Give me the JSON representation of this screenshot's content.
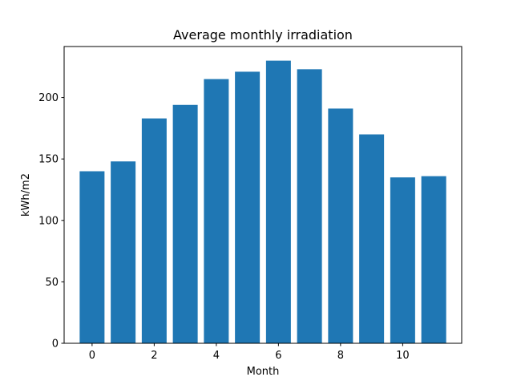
{
  "chart_data": {
    "type": "bar",
    "title": "Average monthly irradiation",
    "xlabel": "Month",
    "ylabel": "kWh/m2",
    "x": [
      0,
      1,
      2,
      3,
      4,
      5,
      6,
      7,
      8,
      9,
      10,
      11
    ],
    "values": [
      140,
      148,
      183,
      194,
      215,
      221,
      230,
      223,
      191,
      170,
      135,
      136
    ],
    "xlim": [
      -0.9,
      11.9
    ],
    "ylim": [
      0,
      241.5
    ],
    "xticks": [
      0,
      2,
      4,
      6,
      8,
      10
    ],
    "yticks": [
      0,
      50,
      100,
      150,
      200
    ],
    "bar_width": 0.8,
    "bar_color": "#1f77b4",
    "grid": false,
    "legend": "none"
  }
}
